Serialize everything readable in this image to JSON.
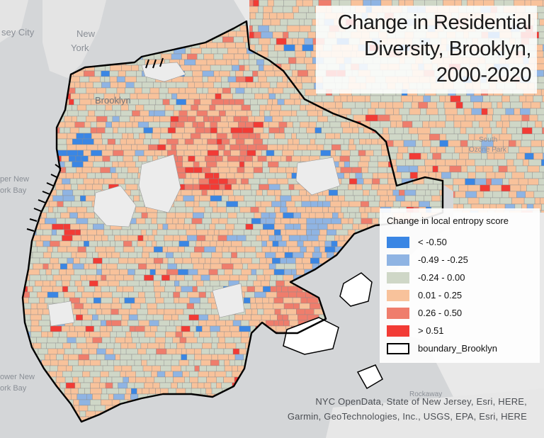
{
  "map": {
    "title_lines": [
      "Change in Residential",
      "Diversity, Brooklyn,",
      "2000-2020"
    ],
    "place_labels": [
      {
        "id": "jersey-city",
        "text": "sey City"
      },
      {
        "id": "new-york-1",
        "text": "New"
      },
      {
        "id": "new-york-2",
        "text": "York"
      },
      {
        "id": "brooklyn",
        "text": "Brooklyn"
      },
      {
        "id": "upper-bay-1",
        "text": "per New"
      },
      {
        "id": "upper-bay-2",
        "text": "ork Bay"
      },
      {
        "id": "lower-bay-1",
        "text": "ower New"
      },
      {
        "id": "lower-bay-2",
        "text": "ork Bay"
      },
      {
        "id": "south-ozone-1",
        "text": "South"
      },
      {
        "id": "south-ozone-2",
        "text": "Ozone Park"
      },
      {
        "id": "rockaway",
        "text": "Rockaway"
      }
    ],
    "legend": {
      "title": "Change in local entropy score",
      "classes": [
        {
          "label": "< -0.50",
          "color": "#3a86e4"
        },
        {
          "label": "-0.49 - -0.25",
          "color": "#8fb4e3"
        },
        {
          "label": "-0.24 - 0.00",
          "color": "#cfd7c7"
        },
        {
          "label": "0.01 - 0.25",
          "color": "#f8c29b"
        },
        {
          "label": "0.26 - 0.50",
          "color": "#ef7d6c"
        },
        {
          "label": "> 0.51",
          "color": "#f23b35"
        }
      ],
      "boundary_label": "boundary_Brooklyn"
    },
    "credits": [
      "NYC OpenData, State of New Jersey, Esri, HERE,",
      "Garmin, GeoTechnologies, Inc., USGS, EPA, Esri, HERE"
    ],
    "colors": {
      "water": "#d4d6d8",
      "land_outside": "#e7e7e7",
      "park": "#ececec",
      "boundary": "#000000",
      "tract_line": "#8c8c8c"
    }
  }
}
